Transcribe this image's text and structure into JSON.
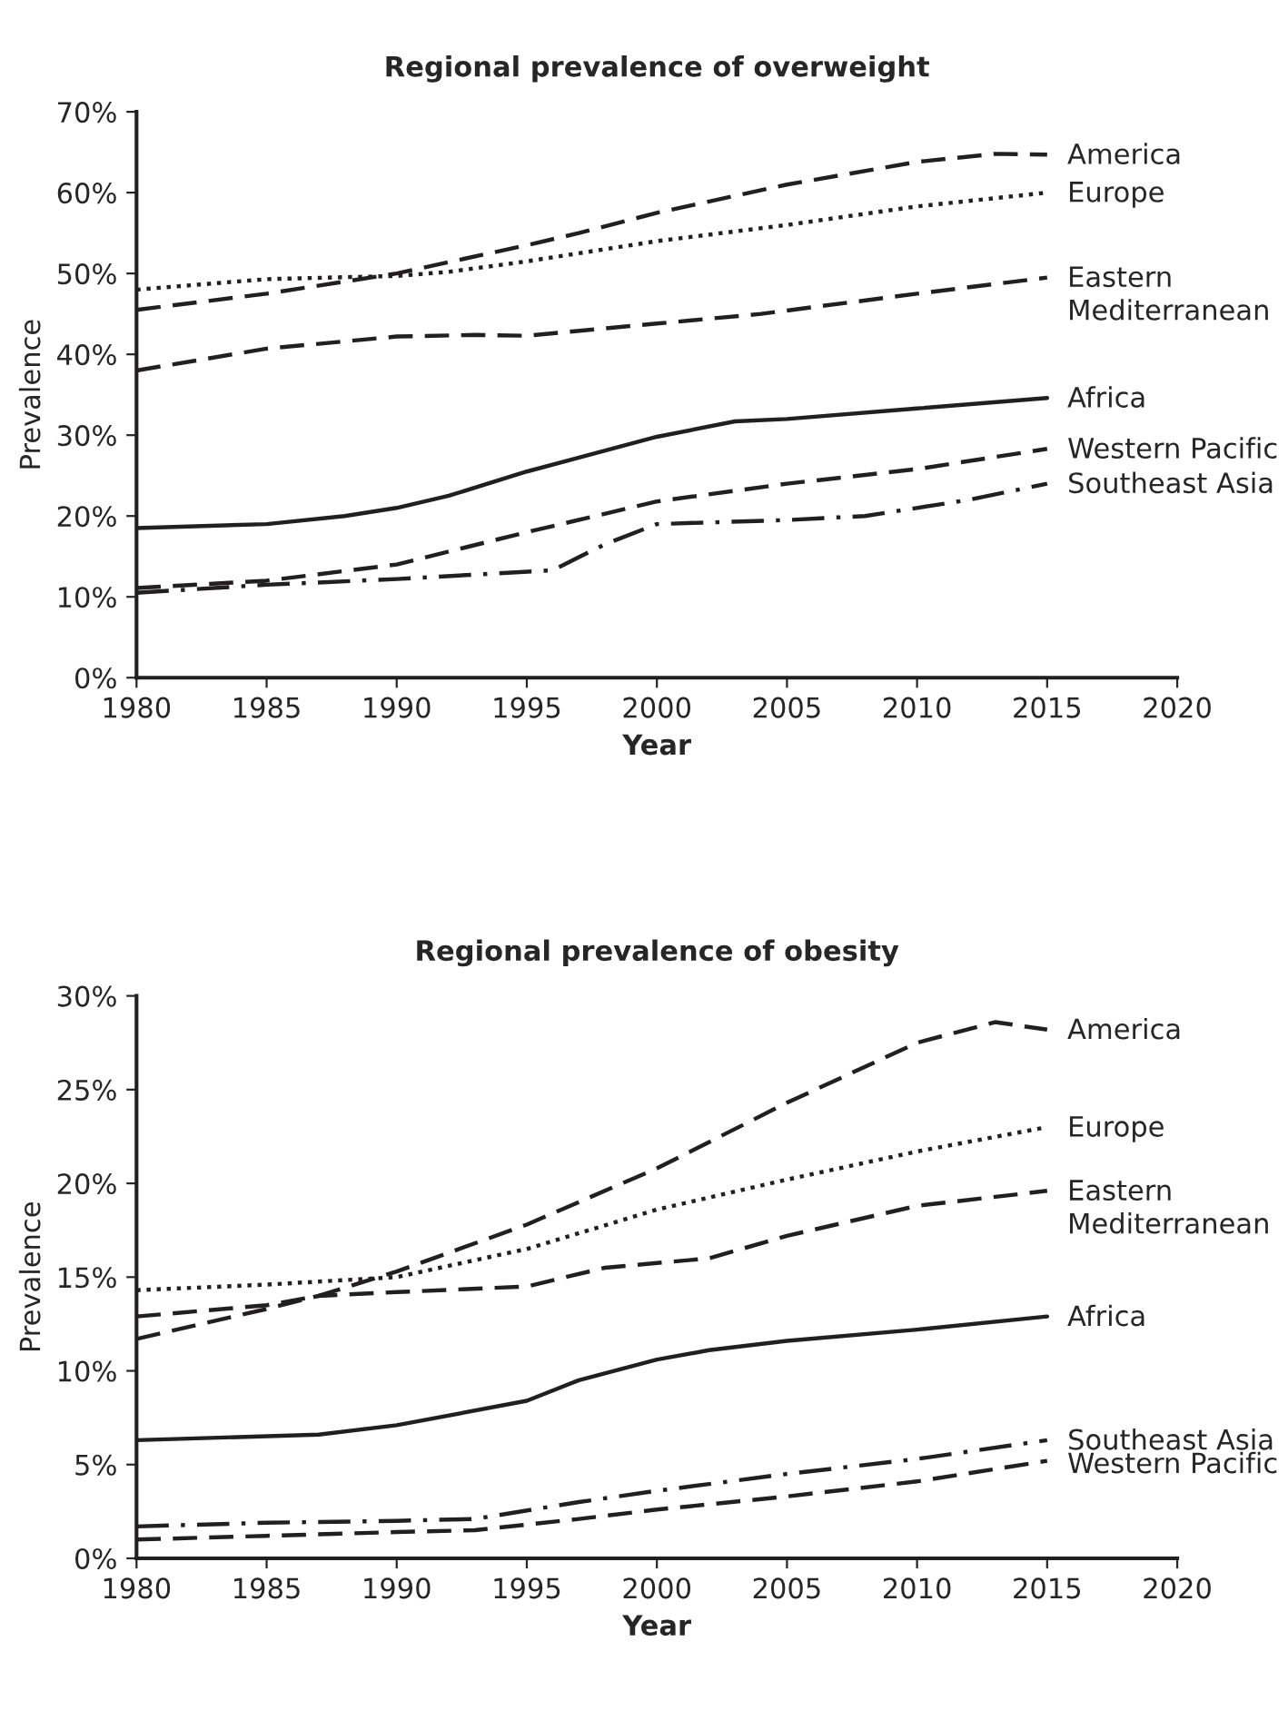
{
  "chart_data": [
    {
      "type": "line",
      "title": "Regional prevalence of overweight",
      "xlabel": "Year",
      "ylabel": "Prevalence",
      "xlim": [
        1980,
        2020
      ],
      "xticks": [
        1980,
        1985,
        1990,
        1995,
        2000,
        2005,
        2010,
        2015,
        2020
      ],
      "ylim": [
        0,
        70
      ],
      "yticks": [
        {
          "value": 0,
          "label": "0%"
        },
        {
          "value": 10,
          "label": "10%"
        },
        {
          "value": 20,
          "label": "20%"
        },
        {
          "value": 30,
          "label": "30%"
        },
        {
          "value": 40,
          "label": "40%"
        },
        {
          "value": 50,
          "label": "50%"
        },
        {
          "value": 60,
          "label": "60%"
        },
        {
          "value": 70,
          "label": "70%"
        }
      ],
      "grid": false,
      "legend": false,
      "marker": "none",
      "series": [
        {
          "name": "America",
          "color": "#231f20",
          "line_style": "dashed",
          "x": [
            1980,
            1985,
            1990,
            1995,
            1997,
            2000,
            2005,
            2010,
            2013,
            2015
          ],
          "values": [
            45.5,
            47.5,
            50,
            53.5,
            55,
            57.5,
            61,
            63.8,
            64.8,
            64.7
          ]
        },
        {
          "name": "Europe",
          "color": "#231f20",
          "line_style": "dotted",
          "x": [
            1980,
            1985,
            1990,
            1992,
            1995,
            2000,
            2005,
            2010,
            2015
          ],
          "values": [
            48,
            49.3,
            49.7,
            50.2,
            51.5,
            54,
            56,
            58.3,
            60
          ]
        },
        {
          "name": "Eastern\nMediterranean",
          "color": "#231f20",
          "line_style": "dashed",
          "x": [
            1980,
            1985,
            1990,
            1993,
            1995,
            2000,
            2004,
            2010,
            2015
          ],
          "values": [
            38,
            40.7,
            42.2,
            42.4,
            42.3,
            43.8,
            45,
            47.5,
            49.5
          ]
        },
        {
          "name": "Africa",
          "color": "#231f20",
          "line_style": "solid",
          "x": [
            1980,
            1985,
            1988,
            1990,
            1992,
            1995,
            2000,
            2003,
            2005,
            2010,
            2015
          ],
          "values": [
            18.5,
            19,
            20,
            21,
            22.5,
            25.5,
            29.8,
            31.7,
            32,
            33.3,
            34.6
          ]
        },
        {
          "name": "Western Pacific",
          "color": "#231f20",
          "line_style": "dashed",
          "x": [
            1980,
            1985,
            1990,
            1995,
            2000,
            2005,
            2010,
            2015
          ],
          "values": [
            11.1,
            12,
            14,
            18,
            21.8,
            24,
            25.8,
            28.3
          ]
        },
        {
          "name": "Southeast Asia",
          "color": "#231f20",
          "line_style": "dashdot",
          "x": [
            1980,
            1985,
            1990,
            1996,
            1998,
            2000,
            2005,
            2008,
            2012,
            2015
          ],
          "values": [
            10.5,
            11.5,
            12.2,
            13.3,
            16.5,
            19,
            19.5,
            20,
            22,
            24
          ]
        }
      ]
    },
    {
      "type": "line",
      "title": "Regional prevalence of obesity",
      "xlabel": "Year",
      "ylabel": "Prevalence",
      "xlim": [
        1980,
        2020
      ],
      "xticks": [
        1980,
        1985,
        1990,
        1995,
        2000,
        2005,
        2010,
        2015,
        2020
      ],
      "ylim": [
        0,
        30
      ],
      "yticks": [
        {
          "value": 0,
          "label": "0%"
        },
        {
          "value": 5,
          "label": "5%"
        },
        {
          "value": 10,
          "label": "10%"
        },
        {
          "value": 15,
          "label": "15%"
        },
        {
          "value": 20,
          "label": "20%"
        },
        {
          "value": 25,
          "label": "25%"
        },
        {
          "value": 30,
          "label": "30%"
        }
      ],
      "grid": false,
      "legend": false,
      "marker": "none",
      "series": [
        {
          "name": "America",
          "color": "#231f20",
          "line_style": "dashed",
          "x": [
            1980,
            1985,
            1987,
            1990,
            1995,
            2000,
            2005,
            2010,
            2013,
            2015
          ],
          "values": [
            12.9,
            13.5,
            14,
            15.3,
            17.8,
            20.8,
            24.3,
            27.5,
            28.6,
            28.2
          ]
        },
        {
          "name": "Europe",
          "color": "#231f20",
          "line_style": "dotted",
          "x": [
            1980,
            1985,
            1990,
            1995,
            2000,
            2005,
            2010,
            2015
          ],
          "values": [
            14.3,
            14.6,
            15,
            16.5,
            18.6,
            20.2,
            21.7,
            23
          ]
        },
        {
          "name": "Eastern\nMediterranean",
          "color": "#231f20",
          "line_style": "dashed",
          "x": [
            1980,
            1985,
            1987,
            1990,
            1995,
            1998,
            2002,
            2005,
            2010,
            2015
          ],
          "values": [
            11.7,
            13.3,
            14,
            14.2,
            14.5,
            15.5,
            16,
            17.2,
            18.8,
            19.6
          ]
        },
        {
          "name": "Africa",
          "color": "#231f20",
          "line_style": "solid",
          "x": [
            1980,
            1987,
            1990,
            1995,
            1997,
            2000,
            2002,
            2005,
            2010,
            2015
          ],
          "values": [
            6.3,
            6.6,
            7.1,
            8.4,
            9.5,
            10.6,
            11.1,
            11.6,
            12.2,
            12.9
          ]
        },
        {
          "name": "Southeast Asia",
          "color": "#231f20",
          "line_style": "dashdot",
          "x": [
            1980,
            1985,
            1990,
            1993,
            1997,
            2000,
            2005,
            2010,
            2015
          ],
          "values": [
            1.7,
            1.9,
            2.0,
            2.1,
            3.0,
            3.6,
            4.5,
            5.3,
            6.3
          ]
        },
        {
          "name": "Western Pacific",
          "color": "#231f20",
          "line_style": "dashed",
          "x": [
            1980,
            1985,
            1990,
            1993,
            1997,
            2000,
            2005,
            2010,
            2015
          ],
          "values": [
            1.0,
            1.2,
            1.4,
            1.5,
            2.1,
            2.6,
            3.3,
            4.1,
            5.2
          ]
        }
      ]
    }
  ]
}
